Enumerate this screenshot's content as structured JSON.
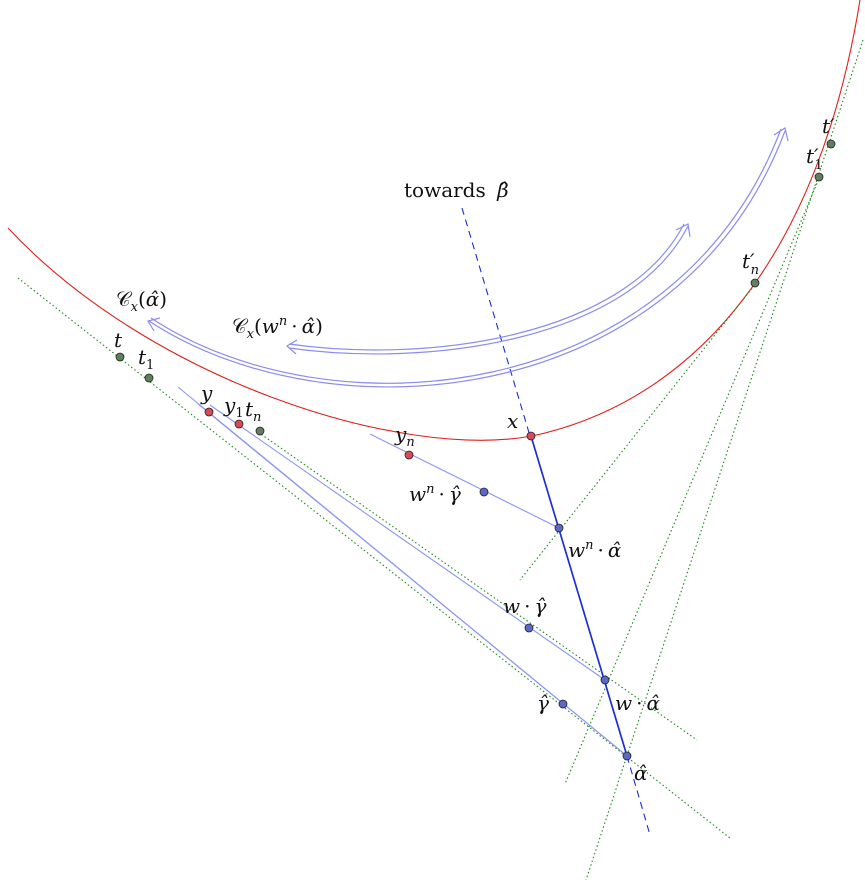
{
  "labels": {
    "towards_text": "towards",
    "beta_hat": "β̂",
    "C": "𝒞",
    "x_sub": "x",
    "alpha_hat": "α̂",
    "gamma_hat": "γ̂",
    "w": "w",
    "n": "n",
    "dot": "·",
    "lparen": "(",
    "rparen": ")",
    "t": "t",
    "t_prime": "t′",
    "one": "1",
    "y": "y",
    "x": "x"
  },
  "colors": {
    "horocycle": "#e0201a",
    "green_dotted": "#1a8a1a",
    "main_segment": "#1a2fd6",
    "light_blue": "#8c96f0",
    "double_arrow": "#8c8cf0",
    "point_green": "#5f7f5f",
    "point_red": "#d84a5a",
    "point_blue": "#5a68c8"
  }
}
